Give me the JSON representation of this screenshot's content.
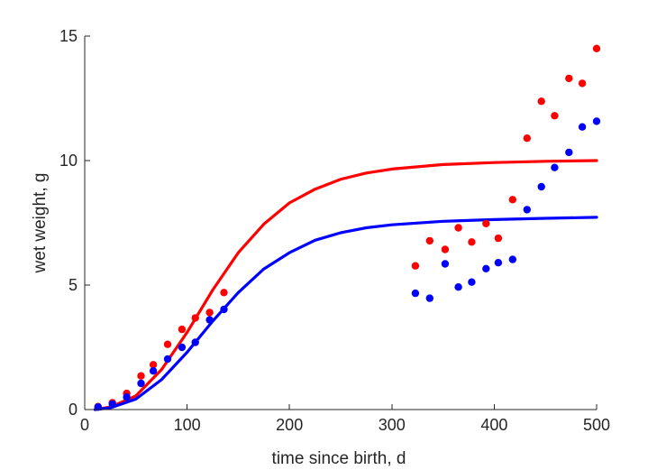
{
  "chart_data": {
    "type": "scatter",
    "title": "",
    "xlabel": "time since birth, d",
    "ylabel": "wet weight, g",
    "xlim": [
      0,
      500
    ],
    "ylim": [
      0,
      15
    ],
    "xticks": [
      0,
      100,
      200,
      300,
      400,
      500
    ],
    "yticks": [
      0,
      5,
      10,
      15
    ],
    "grid": false,
    "legend": "none",
    "series": [
      {
        "kind": "points",
        "color": "#ff0000",
        "x": [
          13,
          27,
          41,
          55,
          67,
          81,
          95,
          108,
          122,
          136,
          323,
          337,
          352,
          365,
          378,
          392,
          404,
          418,
          432,
          446,
          459,
          473,
          486,
          500
        ],
        "y": [
          0.12,
          0.27,
          0.65,
          1.35,
          1.8,
          2.62,
          3.22,
          3.68,
          3.9,
          4.7,
          5.77,
          6.78,
          6.43,
          7.3,
          6.73,
          7.47,
          6.88,
          8.43,
          10.9,
          12.38,
          11.8,
          13.3,
          13.1,
          14.5
        ]
      },
      {
        "kind": "points",
        "color": "#0000ff",
        "x": [
          13,
          27,
          41,
          55,
          67,
          81,
          95,
          108,
          122,
          136,
          323,
          337,
          352,
          365,
          378,
          392,
          404,
          418,
          432,
          446,
          459,
          473,
          486,
          500
        ],
        "y": [
          0.1,
          0.22,
          0.5,
          1.05,
          1.55,
          2.03,
          2.5,
          2.7,
          3.6,
          4.02,
          4.67,
          4.47,
          5.85,
          4.92,
          5.12,
          5.66,
          5.9,
          6.03,
          8.03,
          8.95,
          9.72,
          10.33,
          11.35,
          11.58
        ]
      },
      {
        "kind": "curve",
        "color": "#ff0000",
        "x": [
          10,
          25,
          50,
          75,
          100,
          125,
          150,
          175,
          200,
          225,
          250,
          275,
          300,
          350,
          400,
          450,
          500
        ],
        "y": [
          0.0,
          0.1,
          0.55,
          1.6,
          3.1,
          4.8,
          6.3,
          7.45,
          8.3,
          8.85,
          9.25,
          9.5,
          9.66,
          9.84,
          9.92,
          9.97,
          10.0
        ]
      },
      {
        "kind": "curve",
        "color": "#0000ff",
        "x": [
          10,
          25,
          50,
          75,
          100,
          125,
          150,
          175,
          200,
          225,
          250,
          275,
          300,
          350,
          400,
          450,
          500
        ],
        "y": [
          0.0,
          0.07,
          0.42,
          1.2,
          2.3,
          3.55,
          4.7,
          5.65,
          6.3,
          6.8,
          7.1,
          7.3,
          7.42,
          7.56,
          7.63,
          7.68,
          7.72
        ]
      }
    ]
  }
}
